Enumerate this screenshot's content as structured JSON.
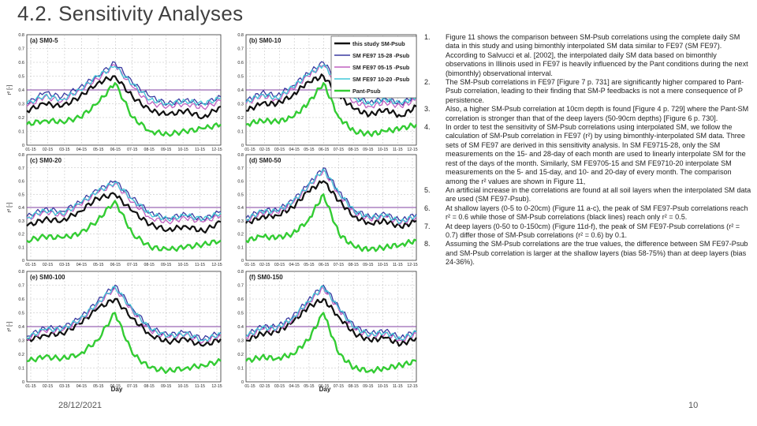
{
  "slide": {
    "title": "4.2. Sensitivity Analyses",
    "date": "28/12/2021",
    "page_number": "10"
  },
  "notes": [
    {
      "num": "1.",
      "text": "Figure 11 shows the comparison between SM-Psub correlations using the complete daily SM data in this study and using bimonthly interpolated SM data similar to FE97 (SM FE97). According to Salvucci et al. [2002], the interpolated daily SM data based on bimonthly observations in Illinois used in FE97 is heavily influenced by the Pant conditions during the next (bimonthly) observational interval."
    },
    {
      "num": "2.",
      "text": "The SM-Psub correlations in FE97 [Figure 7 p. 731] are significantly higher compared to Pant-Psub correlation, leading to their finding that SM-P feedbacks is not a mere consequence of P persistence."
    },
    {
      "num": "3.",
      "text": "Also, a higher SM-Psub correlation at 10cm depth is found [Figure 4 p. 729] where the Pant-SM correlation is stronger than that of the deep layers (50-90cm depths) [Figure 6 p. 730]."
    },
    {
      "num": "4.",
      "text": "In order to test the sensitivity of SM-Psub correlations using interpolated SM, we follow the calculation of SM-Psub correlation in FE97 (r²) by using bimonthly-interpolated SM data. Three sets of SM FE97 are derived in this sensitivity analysis. In SM FE9715-28, only the SM measurements on the 15- and 28-day of each month are used to linearly interpolate SM for the rest of the days of the month. Similarly, SM FE9705-15 and SM FE9710-20 interpolate SM measurements on the 5- and 15-day, and 10- and 20-day of every month. The comparison among the r² values are shown in Figure 11,"
    },
    {
      "num": "5.",
      "text": "An artificial increase in the correlations are found at all soil layers when the interpolated SM data are used (SM FE97-Psub)."
    },
    {
      "num": "6.",
      "text": "At shallow layers (0-5 to 0-20cm) (Figure 11 a-c), the peak of SM FE97-Psub correlations reach r² = 0.6 while those of SM-Psub correlations (black lines) reach only r² = 0.5."
    },
    {
      "num": "7.",
      "text": "At deep layers (0-50 to 0-150cm) (Figure 11d-f), the peak of SM FE97-Psub correlations (r² = 0.7) differ those of SM-Psub correlations (r² = 0.6) by 0.1."
    },
    {
      "num": "8.",
      "text": "Assuming the SM-Psub correlations are the true values, the difference between SM FE97-Psub and SM-Psub correlation is larger at the shallow layers (bias 58-75%) than at deep layers (bias 24-36%)."
    }
  ],
  "figure": {
    "y_label": "r² [-]",
    "x_label": "Day",
    "y_ticks": [
      "0",
      "0.1",
      "0.2",
      "0.3",
      "0.4",
      "0.5",
      "0.6",
      "0.7",
      "0.8"
    ],
    "x_ticks": [
      "01-15",
      "02-15",
      "03-15",
      "04-15",
      "05-15",
      "06-15",
      "07-15",
      "08-15",
      "09-15",
      "10-15",
      "11-15",
      "12-15"
    ],
    "legend": [
      {
        "label": "this study SM-Psub",
        "color": "#111111"
      },
      {
        "label": "SM FE97 15-28 -Psub",
        "color": "#3a3aa0"
      },
      {
        "label": "SM FE97 05-15 -Psub",
        "color": "#c060c0"
      },
      {
        "label": "SM FE97 10-20 -Psub",
        "color": "#40c8d8"
      },
      {
        "label": "Pant-Psub",
        "color": "#33cc33"
      }
    ],
    "threshold_color": "#8040a0"
  },
  "chart_data": [
    {
      "type": "line",
      "panel": "(a) SM0-5",
      "ylim": [
        0,
        0.8
      ],
      "threshold": 0.4,
      "x": [
        1,
        2,
        3,
        4,
        5,
        6,
        7,
        8,
        9,
        10,
        11,
        12
      ],
      "series": [
        {
          "name": "this study SM-Psub",
          "values": [
            0.25,
            0.3,
            0.28,
            0.35,
            0.45,
            0.5,
            0.35,
            0.25,
            0.22,
            0.25,
            0.2,
            0.28
          ]
        },
        {
          "name": "SM FE97 15-28 -Psub",
          "values": [
            0.3,
            0.38,
            0.35,
            0.42,
            0.5,
            0.6,
            0.45,
            0.35,
            0.3,
            0.33,
            0.3,
            0.35
          ]
        },
        {
          "name": "SM FE97 05-15 -Psub",
          "values": [
            0.28,
            0.35,
            0.32,
            0.4,
            0.48,
            0.58,
            0.42,
            0.3,
            0.28,
            0.3,
            0.27,
            0.32
          ]
        },
        {
          "name": "SM FE97 10-20 -Psub",
          "values": [
            0.3,
            0.36,
            0.33,
            0.4,
            0.5,
            0.57,
            0.44,
            0.33,
            0.3,
            0.32,
            0.3,
            0.34
          ]
        },
        {
          "name": "Pant-Psub",
          "values": [
            0.15,
            0.18,
            0.17,
            0.2,
            0.3,
            0.45,
            0.2,
            0.1,
            0.08,
            0.1,
            0.12,
            0.15
          ]
        }
      ]
    },
    {
      "type": "line",
      "panel": "(b) SM0-10",
      "ylim": [
        0,
        0.8
      ],
      "threshold": 0.4,
      "x": [
        1,
        2,
        3,
        4,
        5,
        6,
        7,
        8,
        9,
        10,
        11,
        12
      ],
      "series": [
        {
          "name": "this study SM-Psub",
          "values": [
            0.25,
            0.3,
            0.3,
            0.36,
            0.46,
            0.5,
            0.36,
            0.26,
            0.22,
            0.26,
            0.21,
            0.28
          ]
        },
        {
          "name": "SM FE97 15-28 -Psub",
          "values": [
            0.32,
            0.38,
            0.36,
            0.43,
            0.52,
            0.6,
            0.46,
            0.35,
            0.31,
            0.34,
            0.3,
            0.36
          ]
        },
        {
          "name": "SM FE97 05-15 -Psub",
          "values": [
            0.3,
            0.36,
            0.33,
            0.41,
            0.5,
            0.58,
            0.43,
            0.31,
            0.28,
            0.31,
            0.28,
            0.33
          ]
        },
        {
          "name": "SM FE97 10-20 -Psub",
          "values": [
            0.31,
            0.37,
            0.34,
            0.42,
            0.51,
            0.58,
            0.45,
            0.34,
            0.3,
            0.33,
            0.3,
            0.35
          ]
        },
        {
          "name": "Pant-Psub",
          "values": [
            0.15,
            0.18,
            0.17,
            0.2,
            0.3,
            0.45,
            0.2,
            0.1,
            0.08,
            0.1,
            0.12,
            0.15
          ]
        }
      ]
    },
    {
      "type": "line",
      "panel": "(c) SM0-20",
      "ylim": [
        0,
        0.8
      ],
      "threshold": 0.4,
      "x": [
        1,
        2,
        3,
        4,
        5,
        6,
        7,
        8,
        9,
        10,
        11,
        12
      ],
      "series": [
        {
          "name": "this study SM-Psub",
          "values": [
            0.26,
            0.31,
            0.3,
            0.37,
            0.47,
            0.5,
            0.37,
            0.27,
            0.23,
            0.26,
            0.22,
            0.29
          ]
        },
        {
          "name": "SM FE97 15-28 -Psub",
          "values": [
            0.33,
            0.39,
            0.37,
            0.44,
            0.53,
            0.6,
            0.47,
            0.36,
            0.32,
            0.35,
            0.31,
            0.37
          ]
        },
        {
          "name": "SM FE97 05-15 -Psub",
          "values": [
            0.31,
            0.37,
            0.34,
            0.42,
            0.51,
            0.58,
            0.44,
            0.32,
            0.29,
            0.32,
            0.29,
            0.34
          ]
        },
        {
          "name": "SM FE97 10-20 -Psub",
          "values": [
            0.32,
            0.38,
            0.35,
            0.43,
            0.52,
            0.59,
            0.46,
            0.35,
            0.31,
            0.34,
            0.31,
            0.36
          ]
        },
        {
          "name": "Pant-Psub",
          "values": [
            0.15,
            0.18,
            0.17,
            0.2,
            0.3,
            0.45,
            0.2,
            0.1,
            0.08,
            0.1,
            0.12,
            0.15
          ]
        }
      ]
    },
    {
      "type": "line",
      "panel": "(d) SM0-50",
      "ylim": [
        0,
        0.8
      ],
      "threshold": 0.4,
      "x": [
        1,
        2,
        3,
        4,
        5,
        6,
        7,
        8,
        9,
        10,
        11,
        12
      ],
      "series": [
        {
          "name": "this study SM-Psub",
          "values": [
            0.28,
            0.33,
            0.34,
            0.4,
            0.52,
            0.6,
            0.45,
            0.33,
            0.28,
            0.3,
            0.25,
            0.3
          ]
        },
        {
          "name": "SM FE97 15-28 -Psub",
          "values": [
            0.32,
            0.38,
            0.38,
            0.45,
            0.57,
            0.7,
            0.52,
            0.38,
            0.33,
            0.35,
            0.3,
            0.35
          ]
        },
        {
          "name": "SM FE97 05-15 -Psub",
          "values": [
            0.3,
            0.36,
            0.36,
            0.43,
            0.55,
            0.68,
            0.5,
            0.36,
            0.31,
            0.33,
            0.28,
            0.33
          ]
        },
        {
          "name": "SM FE97 10-20 -Psub",
          "values": [
            0.31,
            0.37,
            0.37,
            0.44,
            0.56,
            0.69,
            0.51,
            0.37,
            0.32,
            0.34,
            0.29,
            0.34
          ]
        },
        {
          "name": "Pant-Psub",
          "values": [
            0.15,
            0.18,
            0.17,
            0.2,
            0.3,
            0.5,
            0.2,
            0.1,
            0.08,
            0.1,
            0.12,
            0.15
          ]
        }
      ]
    },
    {
      "type": "line",
      "panel": "(e) SM0-100",
      "ylim": [
        0,
        0.8
      ],
      "threshold": 0.4,
      "x": [
        1,
        2,
        3,
        4,
        5,
        6,
        7,
        8,
        9,
        10,
        11,
        12
      ],
      "series": [
        {
          "name": "this study SM-Psub",
          "values": [
            0.3,
            0.34,
            0.35,
            0.42,
            0.53,
            0.6,
            0.46,
            0.34,
            0.29,
            0.31,
            0.26,
            0.31
          ]
        },
        {
          "name": "SM FE97 15-28 -Psub",
          "values": [
            0.33,
            0.39,
            0.39,
            0.46,
            0.58,
            0.7,
            0.53,
            0.39,
            0.34,
            0.36,
            0.31,
            0.36
          ]
        },
        {
          "name": "SM FE97 05-15 -Psub",
          "values": [
            0.31,
            0.37,
            0.37,
            0.44,
            0.56,
            0.68,
            0.51,
            0.37,
            0.32,
            0.34,
            0.29,
            0.34
          ]
        },
        {
          "name": "SM FE97 10-20 -Psub",
          "values": [
            0.32,
            0.38,
            0.38,
            0.45,
            0.57,
            0.69,
            0.52,
            0.38,
            0.33,
            0.35,
            0.3,
            0.35
          ]
        },
        {
          "name": "Pant-Psub",
          "values": [
            0.15,
            0.18,
            0.17,
            0.2,
            0.3,
            0.5,
            0.2,
            0.1,
            0.08,
            0.1,
            0.12,
            0.15
          ]
        }
      ]
    },
    {
      "type": "line",
      "panel": "(f) SM0-150",
      "ylim": [
        0,
        0.8
      ],
      "threshold": 0.4,
      "x": [
        1,
        2,
        3,
        4,
        5,
        6,
        7,
        8,
        9,
        10,
        11,
        12
      ],
      "series": [
        {
          "name": "this study SM-Psub",
          "values": [
            0.3,
            0.35,
            0.36,
            0.43,
            0.54,
            0.6,
            0.47,
            0.35,
            0.3,
            0.32,
            0.27,
            0.32
          ]
        },
        {
          "name": "SM FE97 15-28 -Psub",
          "values": [
            0.34,
            0.4,
            0.4,
            0.47,
            0.59,
            0.7,
            0.54,
            0.4,
            0.35,
            0.37,
            0.32,
            0.37
          ]
        },
        {
          "name": "SM FE97 05-15 -Psub",
          "values": [
            0.32,
            0.38,
            0.38,
            0.45,
            0.57,
            0.68,
            0.52,
            0.38,
            0.33,
            0.35,
            0.3,
            0.35
          ]
        },
        {
          "name": "SM FE97 10-20 -Psub",
          "values": [
            0.33,
            0.39,
            0.39,
            0.46,
            0.58,
            0.69,
            0.53,
            0.39,
            0.34,
            0.36,
            0.31,
            0.36
          ]
        },
        {
          "name": "Pant-Psub",
          "values": [
            0.15,
            0.18,
            0.17,
            0.2,
            0.3,
            0.5,
            0.2,
            0.1,
            0.08,
            0.1,
            0.12,
            0.15
          ]
        }
      ]
    }
  ]
}
